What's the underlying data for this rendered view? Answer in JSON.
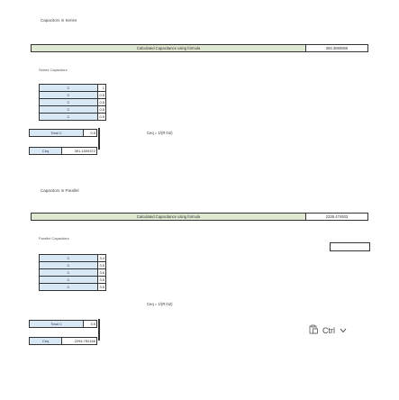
{
  "series": {
    "title": "Capacitors in Series",
    "calc_label": "Calculated Capacitance using formula",
    "calc_value": "393.3860856",
    "list_title": "Series Capacitors",
    "rows": [
      {
        "name": "C",
        "value": "1"
      },
      {
        "name": "C",
        "value": "0.5"
      },
      {
        "name": "C",
        "value": "0.5"
      },
      {
        "name": "C",
        "value": "0.5"
      },
      {
        "name": "C",
        "value": "0.5"
      }
    ],
    "total_label": "Total C",
    "total_value": "0.5",
    "ceq_label": "Ceq",
    "ceq_value": "391.1509372",
    "formula": "Ceq = 1/(R ln2)"
  },
  "parallel": {
    "title": "Capacitors in Parallel",
    "calc_label": "Calculated Capacitance using formula",
    "calc_value": "2336.474933",
    "list_title": "Parallel Capacitors",
    "rows": [
      {
        "name": "C",
        "value": "3.4"
      },
      {
        "name": "C",
        "value": "3.5"
      },
      {
        "name": "C",
        "value": "3.6"
      },
      {
        "name": "C",
        "value": "3.5"
      },
      {
        "name": "C",
        "value": "3.5"
      }
    ],
    "total_label": "Total C",
    "total_value": "3.5",
    "ceq_label": "Ceq",
    "ceq_value": "2294.752166",
    "formula": "Ceq = 1/(R ln2)"
  },
  "paste_options": {
    "label": "Ctrl",
    "icon": "clipboard-icon",
    "chevron": "chevron-down-icon"
  }
}
